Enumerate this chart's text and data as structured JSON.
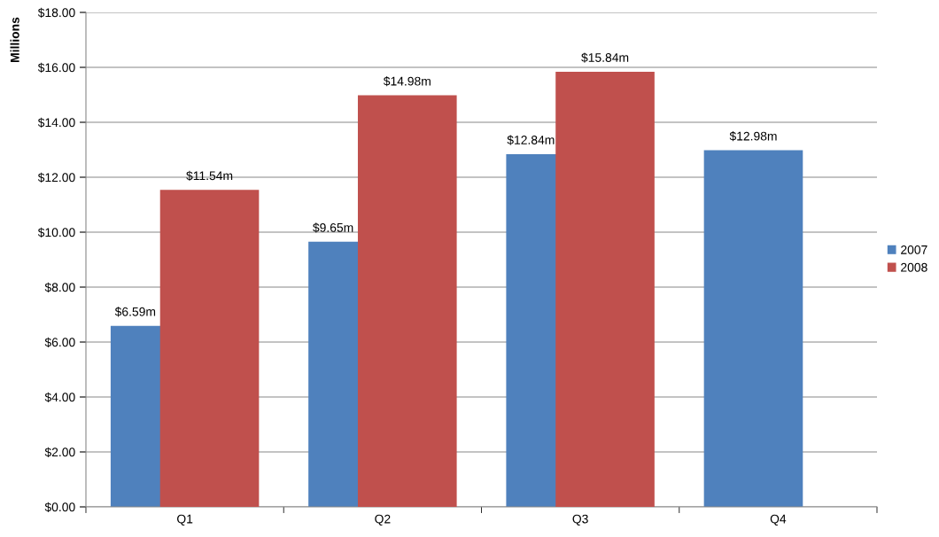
{
  "chart_data": {
    "type": "bar",
    "ylabel": "Millions",
    "categories": [
      "Q1",
      "Q2",
      "Q3",
      "Q4"
    ],
    "series": [
      {
        "name": "2007",
        "color": "#4f81bd",
        "values": [
          6.59,
          9.65,
          12.84,
          12.98
        ],
        "value_labels": [
          "$6.59m",
          "$9.65m",
          "$12.84m",
          "$12.98m"
        ]
      },
      {
        "name": "2008",
        "color": "#c0504d",
        "values": [
          11.54,
          14.98,
          15.84,
          null
        ],
        "value_labels": [
          "$11.54m",
          "$14.98m",
          "$15.84m",
          null
        ]
      }
    ],
    "ylim": [
      0,
      18
    ],
    "yticks": [
      {
        "value": 0,
        "label": "$0.00"
      },
      {
        "value": 2,
        "label": "$2.00"
      },
      {
        "value": 4,
        "label": "$4.00"
      },
      {
        "value": 6,
        "label": "$6.00"
      },
      {
        "value": 8,
        "label": "$8.00"
      },
      {
        "value": 10,
        "label": "$10.00"
      },
      {
        "value": 12,
        "label": "$12.00"
      },
      {
        "value": 14,
        "label": "$14.00"
      },
      {
        "value": 16,
        "label": "$16.00"
      },
      {
        "value": 18,
        "label": "$18.00"
      }
    ],
    "grid": "y",
    "legend": "right"
  }
}
